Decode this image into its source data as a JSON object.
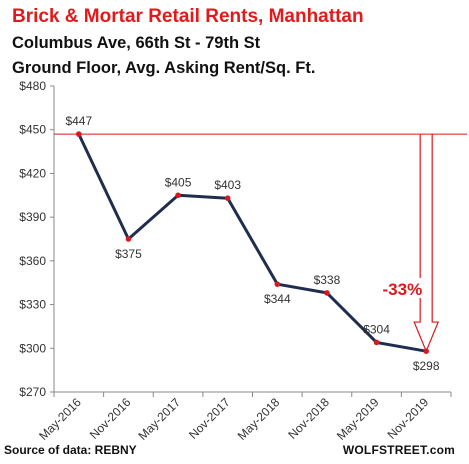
{
  "title": "Brick & Mortar Retail Rents, Manhattan",
  "subtitle_1": "Columbus Ave, 66th St - 79th St",
  "subtitle_2": "Ground Floor, Avg. Asking Rent/Sq. Ft.",
  "source": "Source of data: REBNY",
  "brand": "WOLFSTREET.com",
  "colors": {
    "title": "#e31a1c",
    "line": "#1f2d4f",
    "marker": "#d7191c",
    "reference": "#d7191c"
  },
  "chart_data": {
    "type": "line",
    "categories": [
      "May-2016",
      "Nov-2016",
      "May-2017",
      "Nov-2017",
      "May-2018",
      "Nov-2018",
      "May-2019",
      "Nov-2019"
    ],
    "series": [
      {
        "values": [
          447,
          375,
          405,
          403,
          344,
          338,
          304,
          298
        ]
      }
    ],
    "data_labels": [
      "$447",
      "$375",
      "$405",
      "$403",
      "$344",
      "$338",
      "$304",
      "$298"
    ],
    "y_ticks": [
      "$270",
      "$300",
      "$330",
      "$360",
      "$390",
      "$420",
      "$450",
      "$480"
    ],
    "ylim": [
      270,
      480
    ],
    "grid": false,
    "reference_line": 447,
    "annotation": "-33%"
  }
}
